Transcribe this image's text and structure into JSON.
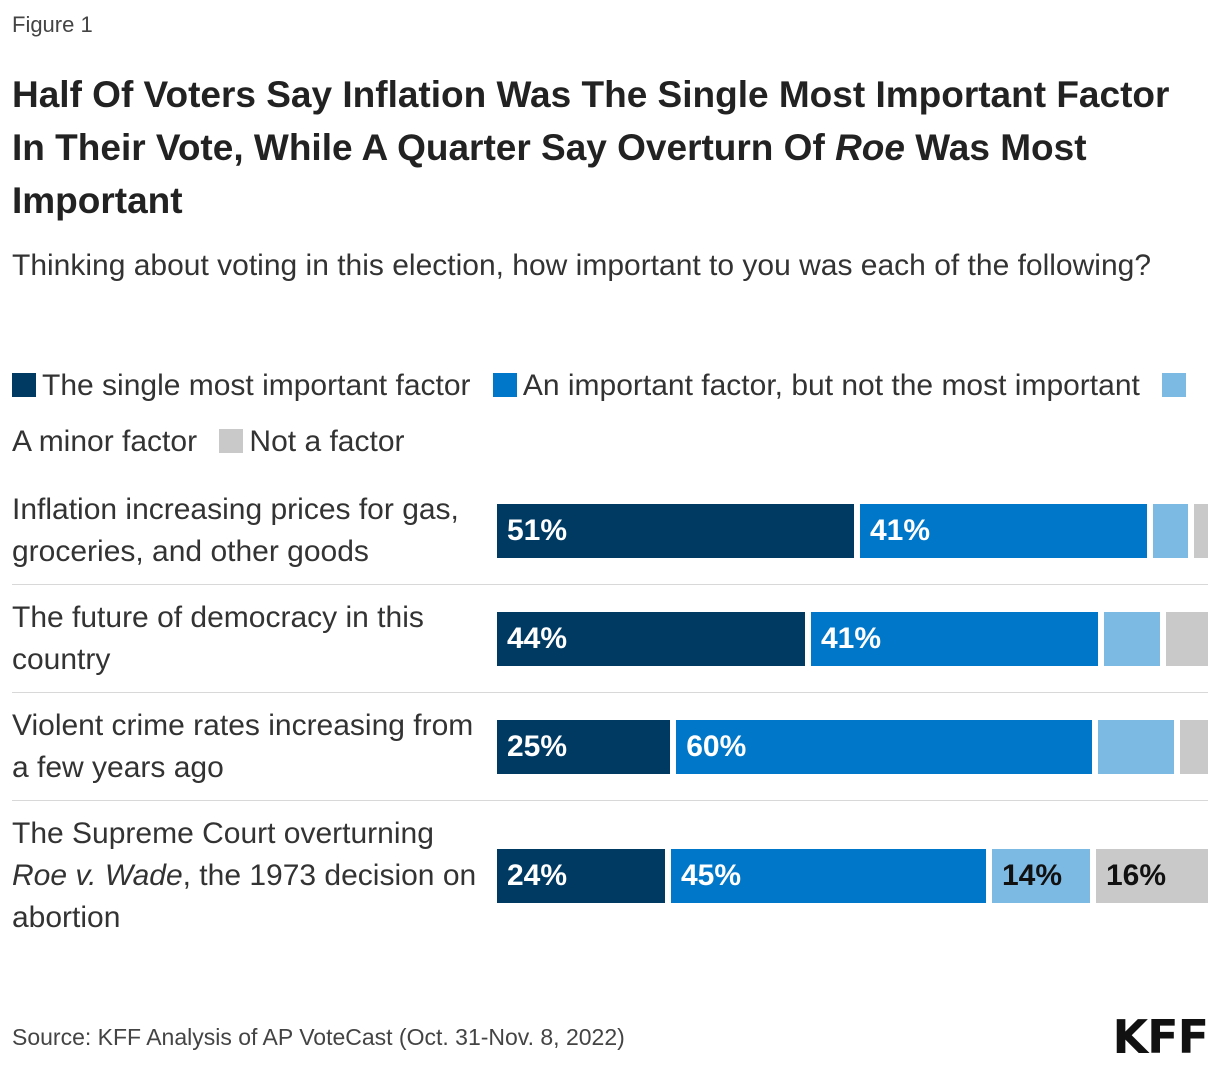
{
  "figure_label": "Figure 1",
  "title_parts": {
    "part1": "Half Of Voters Say Inflation Was The Single Most Important Factor In Their Vote, While A Quarter Say Overturn Of ",
    "italic": "Roe",
    "part2": " Was Most Important"
  },
  "subtitle": "Thinking about voting in this election, how important to you was each of the following?",
  "source": "Source: KFF Analysis of AP VoteCast (Oct. 31-Nov. 8, 2022)",
  "logo": "KFF",
  "colors": {
    "single_most": "#003a63",
    "important": "#0077c8",
    "minor": "#7cb9e3",
    "not_factor": "#c9c9c9",
    "label_light": "#ffffff",
    "label_dark": "#111111"
  },
  "chart_data": {
    "type": "bar",
    "orientation": "horizontal",
    "stacked": true,
    "title": "Half Of Voters Say Inflation Was The Single Most Important Factor In Their Vote, While A Quarter Say Overturn Of Roe Was Most Important",
    "legend": [
      {
        "name": "The single most important factor",
        "color": "#003a63"
      },
      {
        "name": "An important factor, but not the most important",
        "color": "#0077c8"
      },
      {
        "name": "A minor factor",
        "color": "#7cb9e3"
      },
      {
        "name": "Not a factor",
        "color": "#c9c9c9"
      }
    ],
    "categories": [
      {
        "label": "Inflation increasing prices for gas, groceries, and other goods",
        "italic": ""
      },
      {
        "label": "The future of democracy in this country",
        "italic": ""
      },
      {
        "label": "Violent crime rates increasing from a few years ago",
        "italic": ""
      },
      {
        "label_before": "The Supreme Court overturning ",
        "italic": "Roe v. Wade",
        "label_after": ", the 1973 decision on abortion"
      }
    ],
    "series": [
      {
        "name": "The single most important factor",
        "values": [
          51,
          44,
          25,
          24
        ],
        "labels": [
          "51%",
          "44%",
          "25%",
          "24%"
        ]
      },
      {
        "name": "An important factor, but not the most important",
        "values": [
          41,
          41,
          60,
          45
        ],
        "labels": [
          "41%",
          "41%",
          "60%",
          "45%"
        ]
      },
      {
        "name": "A minor factor",
        "values": [
          5,
          8,
          11,
          14
        ],
        "labels": [
          "",
          "",
          "",
          "14%"
        ]
      },
      {
        "name": "Not a factor",
        "values": [
          2,
          6,
          4,
          16
        ],
        "labels": [
          "",
          "",
          "",
          "16%"
        ]
      }
    ],
    "xlim": [
      0,
      100
    ]
  }
}
